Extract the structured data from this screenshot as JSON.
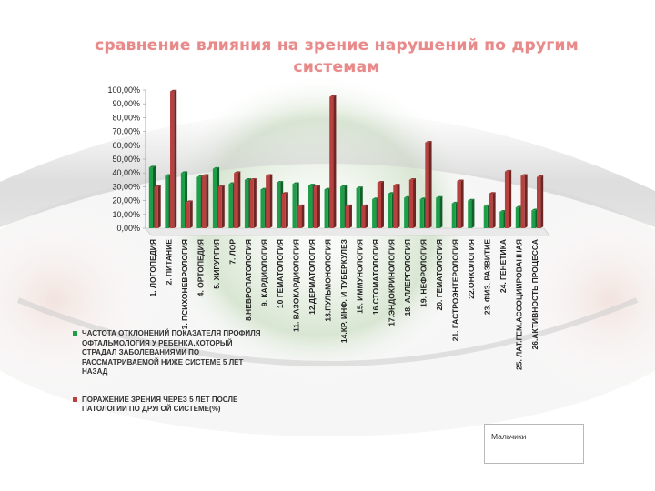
{
  "title": "сравнение влияния на зрение нарушений по другим системам",
  "note_label": "Мальчики",
  "colors": {
    "green": "#1f9e4a",
    "red": "#b8403e",
    "title": "#e88a8a"
  },
  "chart_data": {
    "type": "bar",
    "title": "сравнение влияния на зрение нарушений по другим системам",
    "ylim": [
      0,
      100
    ],
    "yticks": [
      "0,00%",
      "10,00%",
      "20,00%",
      "30,00%",
      "40,00%",
      "50,00%",
      "60,00%",
      "70,00%",
      "80,00%",
      "90,00%",
      "100,00%"
    ],
    "categories": [
      "1. ЛОГОПЕДИЯ",
      "2. ПИТАНИЕ",
      "3. ПСИХОНЕВРОЛОГИЯ",
      "4. ОРТОПЕДИЯ",
      "5. ХИРУРГИЯ",
      "7. ЛОР",
      "8.НЕВРОПАТОЛОГИЯ",
      "9. КАРДИОЛОГИЯ",
      "10 ГЕМАТОЛОГИЯ",
      "11. ВАЗОКАРДИОЛОГИЯ",
      "12.ДЕРМАТОЛОГИЯ",
      "13.ПУЛЬМОНОЛОГИЯ",
      "14.КР. ИНФ. И ТУБЕРКУЛЕЗ",
      "15. ИММУНОЛОГИЯ",
      "16.СТОМАТОЛОГИЯ",
      "17.ЭНДОКРИНОЛОГИЯ",
      "18. АЛЛЕРГОЛОГИЯ",
      "19. НЕФРОЛОГИЯ",
      "20. ГЕМАТОЛОГИЯ",
      "21. ГАСТРОЭНТЕРОЛОГИЯ",
      "22.ОНКОЛОГИЯ",
      "23. ФИЗ. РАЗВИТИЕ",
      "24. ГЕНЕТИКА",
      "25. ЛАТ.ГЕМ.АССОЦИИРОВАННАЯ",
      "26.АКТИВНОСТЬ ПРОЦЕССА"
    ],
    "series": [
      {
        "name": "ЧАСТОТА ОТКЛОНЕНИЙ ПОКАЗАТЕЛЯ ПРОФИЛЯ ОФТАЛЬМОЛОГИЯ У РЕБЕНКА,КОТОРЫЙ СТРАДАЛ ЗАБОЛЕВАНИЯМИ ПО РАССМАТРИВАЕМОЙ НИЖЕ СИСТЕМЕ 5 ЛЕТ НАЗАД",
        "color": "#1f9e4a",
        "values": [
          44,
          38,
          40,
          37,
          43,
          32,
          35,
          28,
          33,
          32,
          31,
          28,
          30,
          29,
          21,
          25,
          22,
          21,
          22,
          18,
          20,
          16,
          12,
          15,
          13
        ]
      },
      {
        "name": "ПОРАЖЕНИЕ ЗРЕНИЯ ЧЕРЕЗ 5 ЛЕТ ПОСЛЕ ПАТОЛОГИИ ПО ДРУГОЙ СИСТЕМЕ(%)",
        "color": "#b8403e",
        "values": [
          30,
          99,
          19,
          38,
          30,
          40,
          35,
          38,
          25,
          16,
          30,
          95,
          16,
          16,
          33,
          31,
          35,
          62,
          0,
          34,
          0,
          25,
          41,
          38,
          37
        ]
      }
    ],
    "legend": "bottom-left",
    "grid": false
  }
}
